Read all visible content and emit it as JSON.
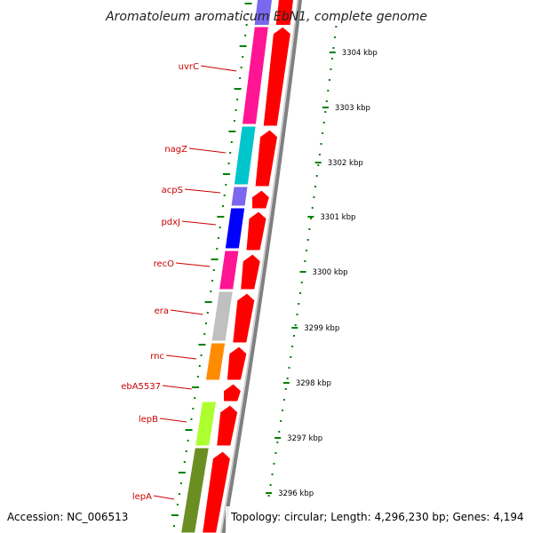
{
  "title": "Aromatoleum aromaticum EbN1, complete genome",
  "footer": {
    "accession": "Accession: NC_006513",
    "topology": "Topology: circular; Length: 4,296,230 bp; Genes: 4,194"
  },
  "colors": {
    "cds": "#ff0000",
    "gene_label": "#cc0000",
    "tick": "#008000",
    "backbone": "#808080"
  },
  "genes": [
    {
      "name": "uvrC",
      "color": "#ff1493"
    },
    {
      "name": "nagZ",
      "color": "#00c5cd"
    },
    {
      "name": "acpS",
      "color": "#7b68ee"
    },
    {
      "name": "pdxJ",
      "color": "#0000ff"
    },
    {
      "name": "recO",
      "color": "#ff1493"
    },
    {
      "name": "era",
      "color": "#c0c0c0"
    },
    {
      "name": "rnc",
      "color": "#ff8c00"
    },
    {
      "name": "ebA5537",
      "color": ""
    },
    {
      "name": "lepB",
      "color": "#adff2f"
    },
    {
      "name": "lepA",
      "color": "#6b8e23"
    }
  ],
  "kbp_ticks": [
    "3304 kbp",
    "3303 kbp",
    "3302 kbp",
    "3301 kbp",
    "3300 kbp",
    "3299 kbp",
    "3298 kbp",
    "3297 kbp",
    "3296 kbp"
  ]
}
